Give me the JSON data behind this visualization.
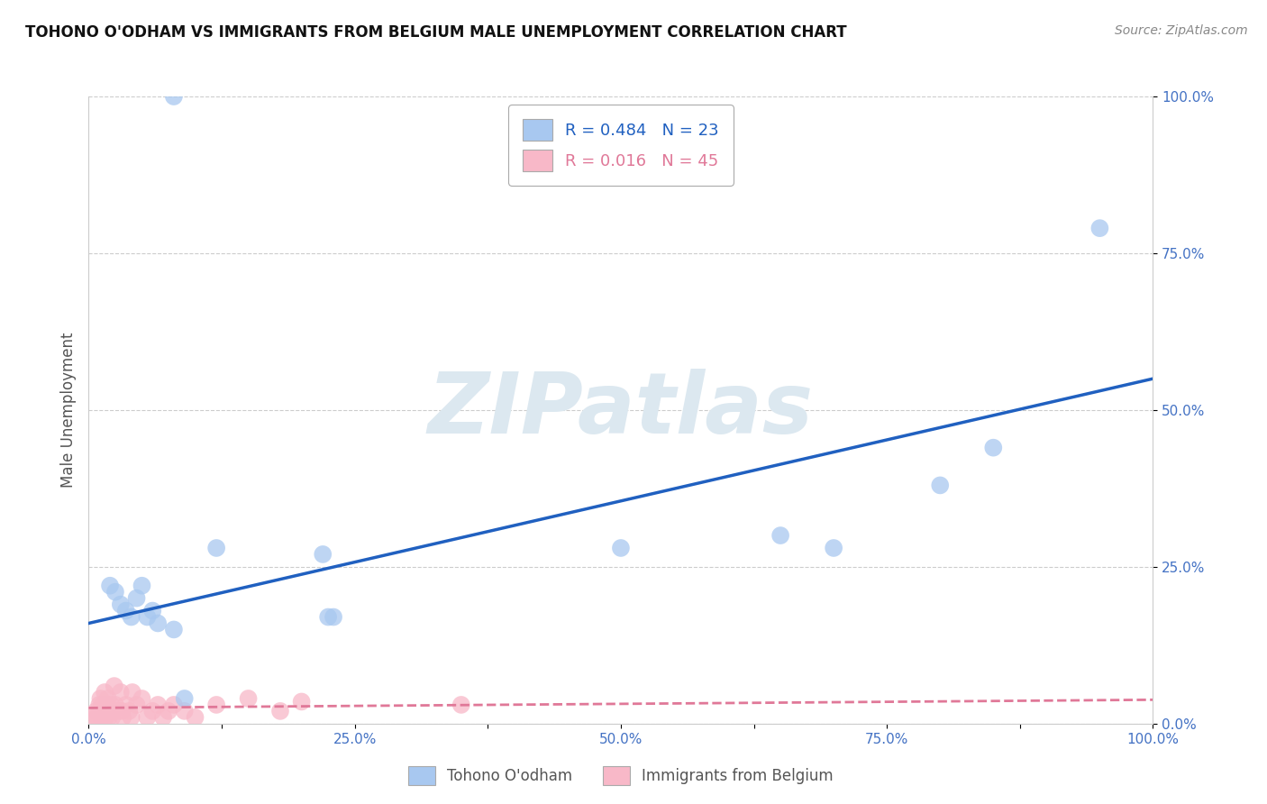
{
  "title": "TOHONO O'ODHAM VS IMMIGRANTS FROM BELGIUM MALE UNEMPLOYMENT CORRELATION CHART",
  "source": "Source: ZipAtlas.com",
  "ylabel": "Male Unemployment",
  "xlim": [
    0,
    1.0
  ],
  "ylim": [
    0,
    1.0
  ],
  "xticks": [
    0.0,
    0.125,
    0.25,
    0.375,
    0.5,
    0.625,
    0.75,
    0.875,
    1.0
  ],
  "xticklabels": [
    "0.0%",
    "",
    "25.0%",
    "",
    "50.0%",
    "",
    "75.0%",
    "",
    "100.0%"
  ],
  "yticks": [
    0.0,
    0.25,
    0.5,
    0.75,
    1.0
  ],
  "yticklabels": [
    "0.0%",
    "25.0%",
    "50.0%",
    "75.0%",
    "100.0%"
  ],
  "series1_name": "Tohono O'odham",
  "series1_color": "#a8c8f0",
  "series1_R": "0.484",
  "series1_N": "23",
  "series1_line_color": "#2060c0",
  "series2_name": "Immigrants from Belgium",
  "series2_color": "#f8b8c8",
  "series2_R": "0.016",
  "series2_N": "45",
  "series2_line_color": "#e07898",
  "watermark": "ZIPatlas",
  "watermark_color": "#dce8f0",
  "background_color": "#ffffff",
  "grid_color": "#cccccc",
  "title_color": "#111111",
  "axis_label_color": "#555555",
  "tick_label_color": "#4472c4",
  "tohono_x": [
    0.02,
    0.025,
    0.03,
    0.035,
    0.04,
    0.045,
    0.05,
    0.055,
    0.06,
    0.065,
    0.08,
    0.09,
    0.12,
    0.22,
    0.225,
    0.23,
    0.08,
    0.5,
    0.65,
    0.7,
    0.8,
    0.85,
    0.95
  ],
  "tohono_y": [
    0.22,
    0.21,
    0.19,
    0.18,
    0.17,
    0.2,
    0.22,
    0.17,
    0.18,
    0.16,
    0.15,
    0.04,
    0.28,
    0.27,
    0.17,
    0.17,
    1.0,
    0.28,
    0.3,
    0.28,
    0.38,
    0.44,
    0.79
  ],
  "belgium_x": [
    0.005,
    0.007,
    0.008,
    0.009,
    0.01,
    0.01,
    0.011,
    0.012,
    0.013,
    0.014,
    0.015,
    0.016,
    0.017,
    0.018,
    0.018,
    0.019,
    0.02,
    0.021,
    0.022,
    0.023,
    0.024,
    0.025,
    0.028,
    0.03,
    0.031,
    0.032,
    0.035,
    0.038,
    0.04,
    0.041,
    0.045,
    0.05,
    0.055,
    0.06,
    0.065,
    0.07,
    0.075,
    0.08,
    0.09,
    0.1,
    0.12,
    0.15,
    0.18,
    0.2,
    0.35
  ],
  "belgium_y": [
    0.01,
    0.02,
    0.01,
    0.005,
    0.03,
    0.02,
    0.04,
    0.01,
    0.03,
    0.02,
    0.05,
    0.01,
    0.03,
    0.04,
    0.02,
    0.01,
    0.02,
    0.03,
    0.01,
    0.02,
    0.06,
    0.03,
    0.02,
    0.05,
    0.02,
    0.01,
    0.03,
    0.02,
    0.01,
    0.05,
    0.03,
    0.04,
    0.01,
    0.02,
    0.03,
    0.01,
    0.02,
    0.03,
    0.02,
    0.01,
    0.03,
    0.04,
    0.02,
    0.035,
    0.03
  ],
  "legend_box_color": "#ffffff",
  "legend_border_color": "#aaaaaa",
  "tohono_trendline_x0": 0.0,
  "tohono_trendline_y0": 0.16,
  "tohono_trendline_x1": 1.0,
  "tohono_trendline_y1": 0.55,
  "belgium_trendline_x0": 0.0,
  "belgium_trendline_y0": 0.025,
  "belgium_trendline_x1": 1.0,
  "belgium_trendline_y1": 0.038
}
